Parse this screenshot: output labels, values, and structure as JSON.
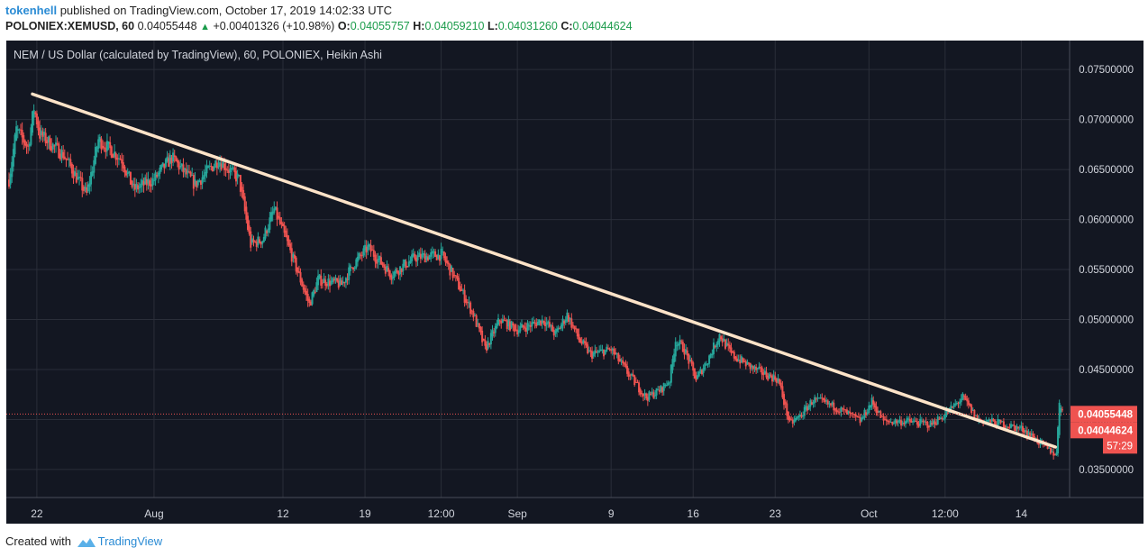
{
  "header": {
    "user": "tokenhell",
    "published_text": "published on TradingView.com, October 17, 2019 14:02:33 UTC",
    "symbol": "POLONIEX:XEMUSD, 60",
    "last_price": "0.04055448",
    "change_arrow": "▲",
    "change": "+0.00401326 (+10.98%)",
    "o_label": "O:",
    "o_value": "0.04055757",
    "h_label": "H:",
    "h_value": "0.04059210",
    "l_label": "L:",
    "l_value": "0.04031260",
    "c_label": "C:",
    "c_value": "0.04044624"
  },
  "footer": {
    "created_with": "Created with",
    "brand": "TradingView"
  },
  "colors": {
    "background": "#131722",
    "grid": "#2a2e39",
    "up_candle": "#26a69a",
    "down_candle": "#ef5350",
    "trendline": "#fde3c8",
    "price_tag": "#ef5350",
    "price_line": "#ef5350"
  },
  "chart_data": {
    "type": "candlestick",
    "title": "NEM / US Dollar (calculated by TradingView), 60, POLONIEX, Heikin Ashi",
    "y_scale": "linear",
    "ylim": [
      0.0322,
      0.0779
    ],
    "y_ticks": [
      "0.07500000",
      "0.07000000",
      "0.06500000",
      "0.06000000",
      "0.05500000",
      "0.05000000",
      "0.04500000",
      "0.04000000",
      "0.03500000"
    ],
    "y_tick_values": [
      0.075,
      0.07,
      0.065,
      0.06,
      0.055,
      0.05,
      0.045,
      0.04,
      0.035
    ],
    "x_ticks": [
      "22",
      "Aug",
      "12",
      "19",
      "12:00",
      "Sep",
      "9",
      "16",
      "23",
      "Oct",
      "12:00",
      "14"
    ],
    "x_tick_dates": [
      "2019-07-22",
      "2019-08-01",
      "2019-08-12",
      "2019-08-19",
      "2019-08-25T12:00",
      "2019-09-01",
      "2019-09-09",
      "2019-09-16",
      "2019-09-23",
      "2019-10-01",
      "2019-10-07T12:00",
      "2019-10-14"
    ],
    "x_range": [
      "2019-07-19T15:00",
      "2019-10-17T14:00"
    ],
    "price_anchors": [
      [
        "2019-07-19T15:00",
        0.064
      ],
      [
        "2019-07-20T06:00",
        0.069
      ],
      [
        "2019-07-21T06:00",
        0.0672
      ],
      [
        "2019-07-21T18:00",
        0.0712
      ],
      [
        "2019-07-22T06:00",
        0.0685
      ],
      [
        "2019-07-24T06:00",
        0.0665
      ],
      [
        "2019-07-26T06:00",
        0.0625
      ],
      [
        "2019-07-27T06:00",
        0.068
      ],
      [
        "2019-07-29T06:00",
        0.066
      ],
      [
        "2019-07-30T06:00",
        0.063
      ],
      [
        "2019-08-01T00:00",
        0.064
      ],
      [
        "2019-08-02T12:00",
        0.0662
      ],
      [
        "2019-08-04T12:00",
        0.0635
      ],
      [
        "2019-08-06T12:00",
        0.066
      ],
      [
        "2019-08-08T06:00",
        0.064
      ],
      [
        "2019-08-09T06:00",
        0.0575
      ],
      [
        "2019-08-10T06:00",
        0.058
      ],
      [
        "2019-08-11T06:00",
        0.061
      ],
      [
        "2019-08-12T06:00",
        0.058
      ],
      [
        "2019-08-14T06:00",
        0.0515
      ],
      [
        "2019-08-15T00:00",
        0.054
      ],
      [
        "2019-08-17T00:00",
        0.0535
      ],
      [
        "2019-08-18T00:00",
        0.0555
      ],
      [
        "2019-08-19T06:00",
        0.0572
      ],
      [
        "2019-08-21T06:00",
        0.0545
      ],
      [
        "2019-08-23T06:00",
        0.0562
      ],
      [
        "2019-08-25T12:00",
        0.0565
      ],
      [
        "2019-08-26T12:00",
        0.0545
      ],
      [
        "2019-08-28T06:00",
        0.0505
      ],
      [
        "2019-08-29T06:00",
        0.047
      ],
      [
        "2019-08-30T12:00",
        0.05
      ],
      [
        "2019-09-01T00:00",
        0.049
      ],
      [
        "2019-09-02T06:00",
        0.0495
      ],
      [
        "2019-09-03T06:00",
        0.05
      ],
      [
        "2019-09-04T06:00",
        0.0485
      ],
      [
        "2019-09-05T06:00",
        0.0505
      ],
      [
        "2019-09-06T06:00",
        0.048
      ],
      [
        "2019-09-07T06:00",
        0.0465
      ],
      [
        "2019-09-09T00:00",
        0.047
      ],
      [
        "2019-09-10T12:00",
        0.0445
      ],
      [
        "2019-09-12T00:00",
        0.0422
      ],
      [
        "2019-09-13T06:00",
        0.043
      ],
      [
        "2019-09-14T00:00",
        0.044
      ],
      [
        "2019-09-14T12:00",
        0.048
      ],
      [
        "2019-09-15T06:00",
        0.047
      ],
      [
        "2019-09-16T06:00",
        0.044
      ],
      [
        "2019-09-17T06:00",
        0.046
      ],
      [
        "2019-09-18T06:00",
        0.0485
      ],
      [
        "2019-09-19T06:00",
        0.0465
      ],
      [
        "2019-09-21T06:00",
        0.045
      ],
      [
        "2019-09-22T06:00",
        0.0445
      ],
      [
        "2019-09-23T06:00",
        0.044
      ],
      [
        "2019-09-24T06:00",
        0.0395
      ],
      [
        "2019-09-25T06:00",
        0.0405
      ],
      [
        "2019-09-26T06:00",
        0.042
      ],
      [
        "2019-09-28T06:00",
        0.0412
      ],
      [
        "2019-09-30T06:00",
        0.0398
      ],
      [
        "2019-10-01T06:00",
        0.0418
      ],
      [
        "2019-10-02T06:00",
        0.0398
      ],
      [
        "2019-10-04T06:00",
        0.0398
      ],
      [
        "2019-10-06T06:00",
        0.0395
      ],
      [
        "2019-10-07T12:00",
        0.0405
      ],
      [
        "2019-10-09T00:00",
        0.0422
      ],
      [
        "2019-10-10T06:00",
        0.04
      ],
      [
        "2019-10-12T06:00",
        0.0396
      ],
      [
        "2019-10-14T06:00",
        0.039
      ],
      [
        "2019-10-16T06:00",
        0.037
      ],
      [
        "2019-10-17T00:00",
        0.0365
      ],
      [
        "2019-10-17T06:00",
        0.042
      ],
      [
        "2019-10-17T14:00",
        0.04055
      ]
    ],
    "trendline": {
      "start": [
        "2019-07-21T15:00",
        0.07255
      ],
      "end": [
        "2019-10-16T22:00",
        0.03725
      ]
    },
    "price_line": 0.04055448,
    "price_labels": [
      "0.04055448",
      "0.04044624"
    ],
    "countdown": "57:29"
  }
}
